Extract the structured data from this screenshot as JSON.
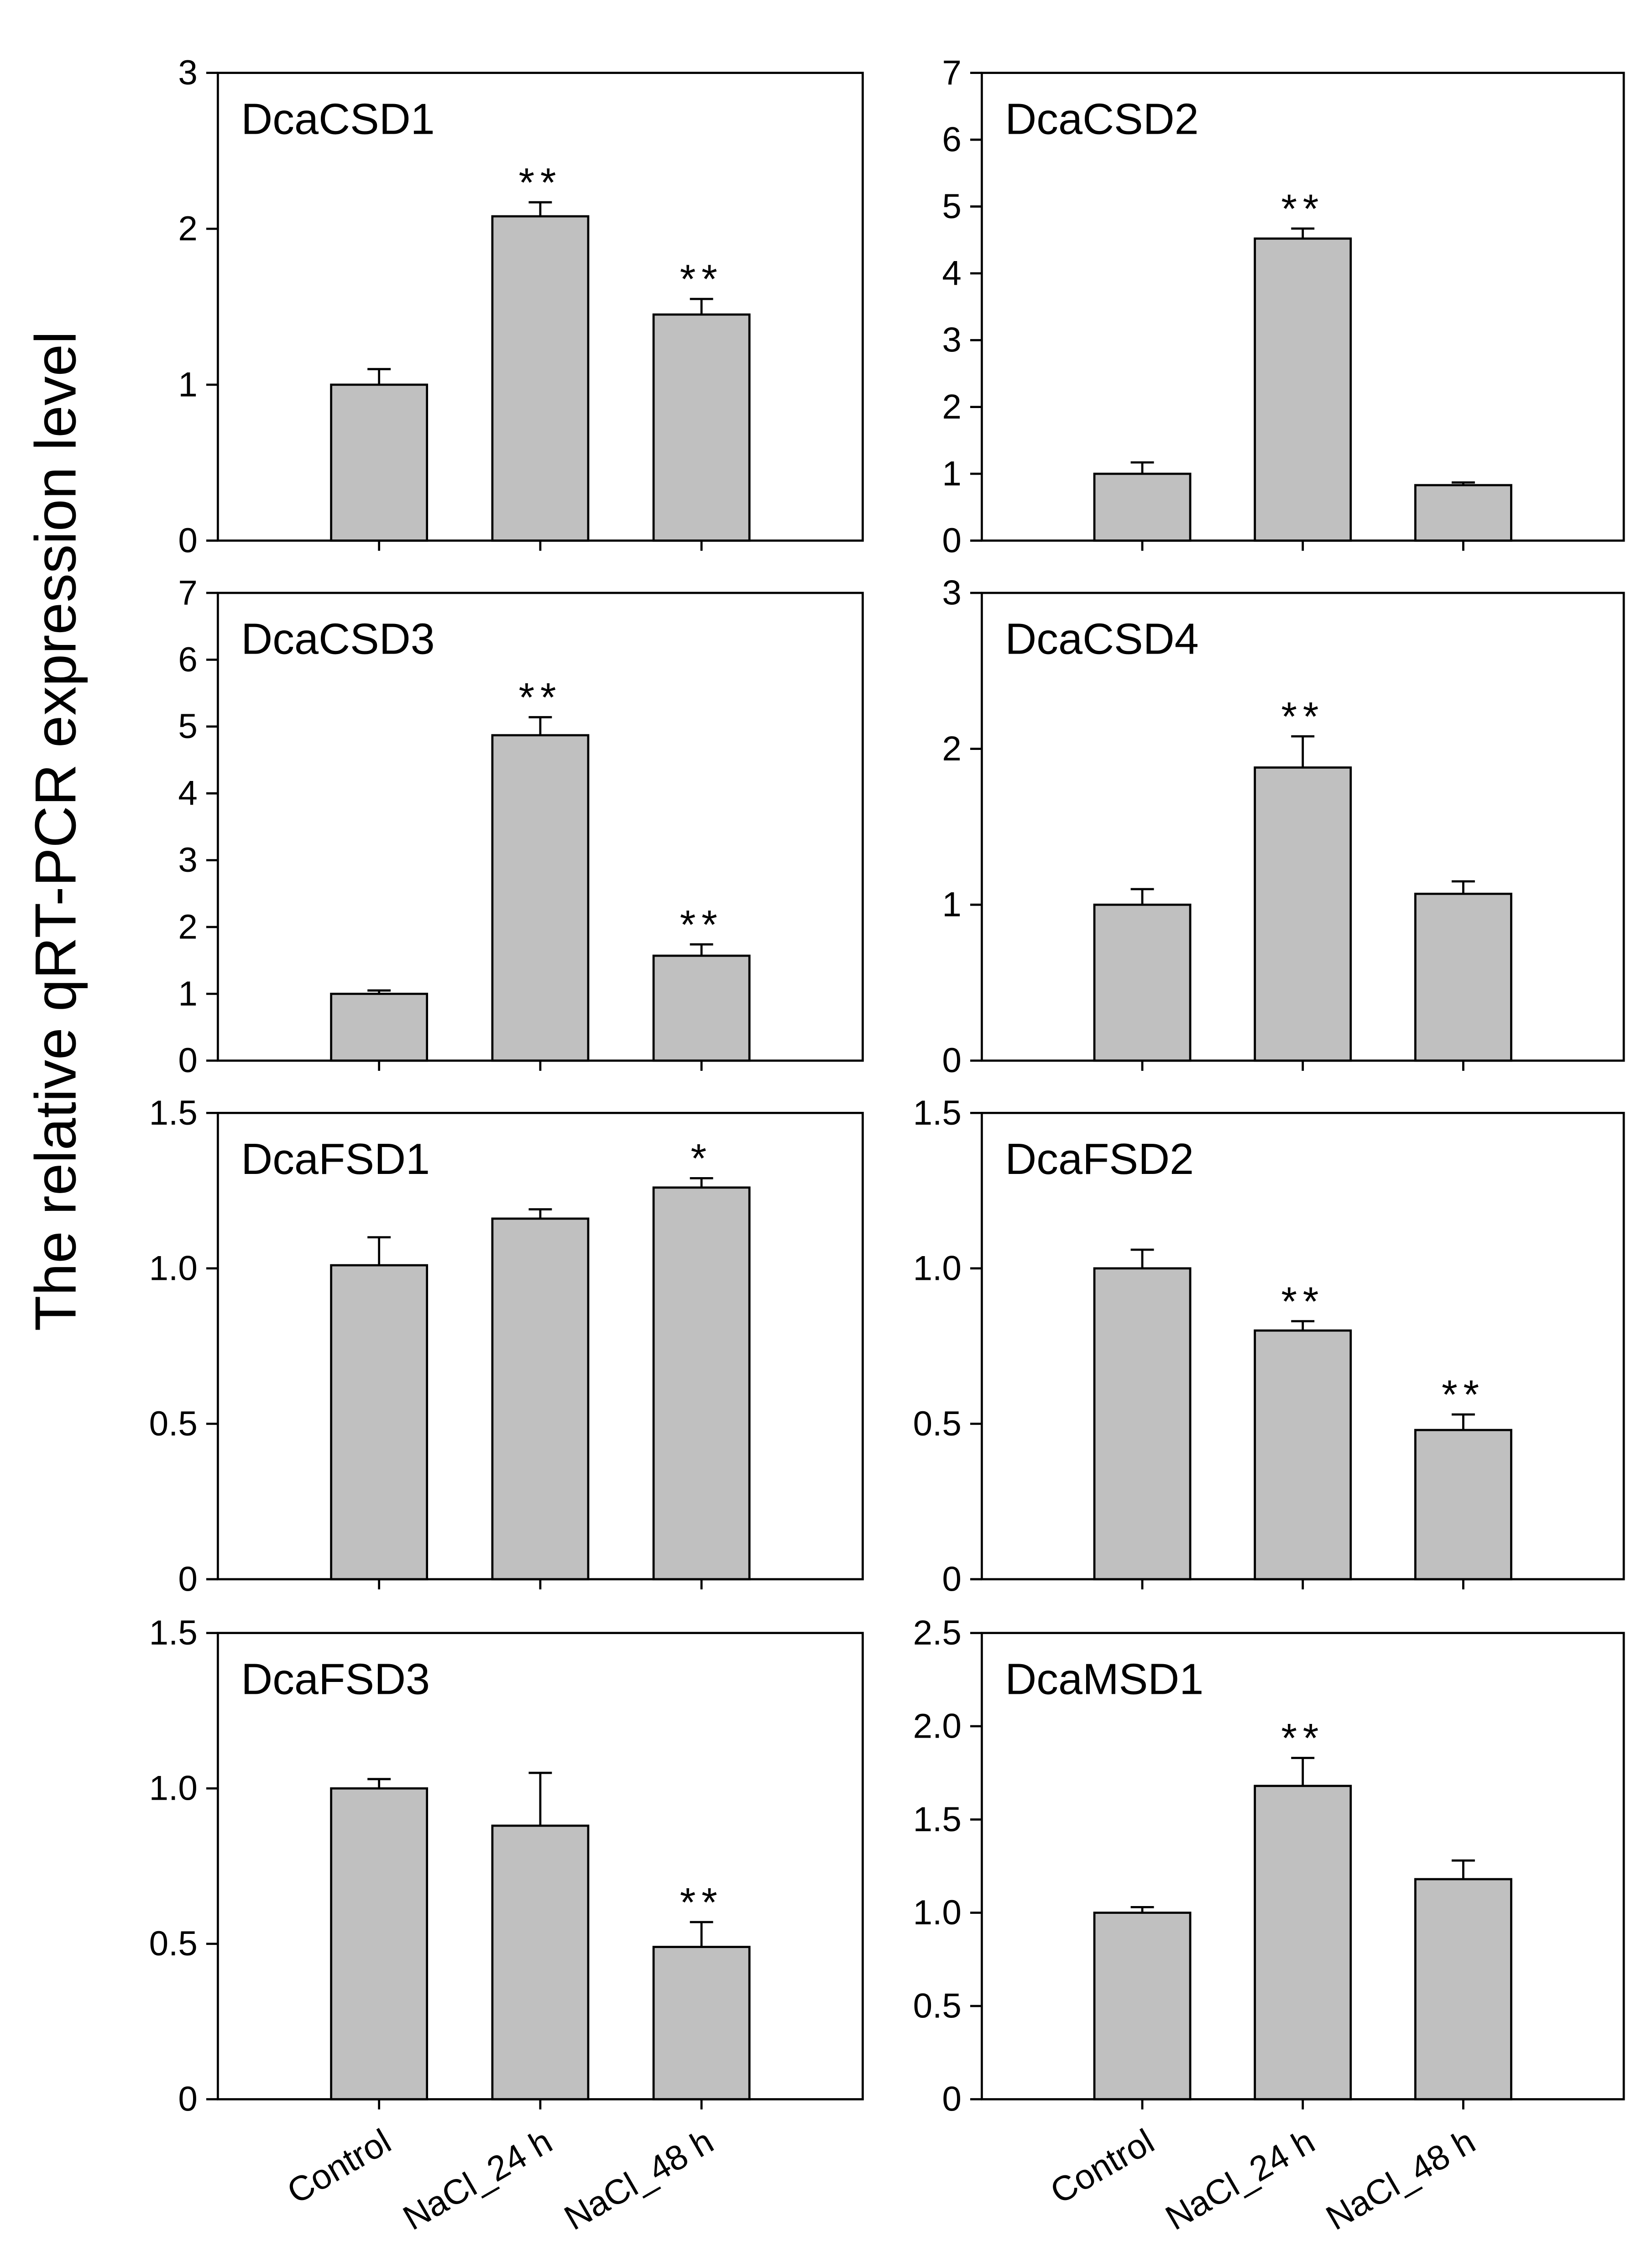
{
  "ylabel": "The relative qRT-PCR expression level",
  "chart_data": [
    {
      "type": "bar",
      "title": "DcaCSD1",
      "color": "#c0c0c0",
      "values": [
        1.0,
        2.08,
        1.45
      ],
      "errors": [
        0.1,
        0.09,
        0.1
      ],
      "annotations": [
        null,
        "**",
        "**"
      ],
      "ylim": [
        0,
        3
      ],
      "yticks": [
        0,
        1,
        2,
        3
      ]
    },
    {
      "type": "bar",
      "title": "DcaCSD2",
      "color": "#c0c0c0",
      "values": [
        1.0,
        4.52,
        0.83
      ],
      "errors": [
        0.17,
        0.15,
        0.04
      ],
      "annotations": [
        null,
        "**",
        null
      ],
      "ylim": [
        0,
        7
      ],
      "yticks": [
        0,
        1,
        2,
        3,
        4,
        5,
        6,
        7
      ]
    },
    {
      "type": "bar",
      "title": "DcaCSD3",
      "color": "#c0c0c0",
      "values": [
        1.0,
        4.87,
        1.57
      ],
      "errors": [
        0.05,
        0.27,
        0.17
      ],
      "annotations": [
        null,
        "**",
        "**"
      ],
      "ylim": [
        0,
        7
      ],
      "yticks": [
        0,
        1,
        2,
        3,
        4,
        5,
        6,
        7
      ]
    },
    {
      "type": "bar",
      "title": "DcaCSD4",
      "color": "#c0c0c0",
      "values": [
        1.0,
        1.88,
        1.07
      ],
      "errors": [
        0.1,
        0.2,
        0.08
      ],
      "annotations": [
        null,
        "**",
        null
      ],
      "ylim": [
        0,
        3
      ],
      "yticks": [
        0,
        1,
        2,
        3
      ]
    },
    {
      "type": "bar",
      "title": "DcaFSD1",
      "color": "#c0c0c0",
      "values": [
        1.01,
        1.16,
        1.26
      ],
      "errors": [
        0.09,
        0.03,
        0.03
      ],
      "annotations": [
        null,
        null,
        "*"
      ],
      "ylim": [
        0,
        1.5
      ],
      "yticks": [
        0,
        0.5,
        {
          "value": 1,
          "label": "1.0"
        },
        1.5
      ]
    },
    {
      "type": "bar",
      "title": "DcaFSD2",
      "color": "#c0c0c0",
      "values": [
        1.0,
        0.8,
        0.48
      ],
      "errors": [
        0.06,
        0.03,
        0.05
      ],
      "annotations": [
        null,
        "**",
        "**"
      ],
      "ylim": [
        0,
        1.5
      ],
      "yticks": [
        0,
        0.5,
        {
          "value": 1,
          "label": "1.0"
        },
        1.5
      ]
    },
    {
      "type": "bar",
      "title": "DcaFSD3",
      "color": "#c0c0c0",
      "categories": [
        "Control",
        "NaCl_24 h",
        "NaCl_48 h"
      ],
      "values": [
        1.0,
        0.88,
        0.49
      ],
      "errors": [
        0.03,
        0.17,
        0.08
      ],
      "annotations": [
        null,
        null,
        "**"
      ],
      "ylim": [
        0,
        1.5
      ],
      "yticks": [
        0,
        0.5,
        {
          "value": 1,
          "label": "1.0"
        },
        1.5
      ]
    },
    {
      "type": "bar",
      "title": "DcaMSD1",
      "color": "#c0c0c0",
      "categories": [
        "Control",
        "NaCl_24 h",
        "NaCl_48 h"
      ],
      "values": [
        1.0,
        1.68,
        1.18
      ],
      "errors": [
        0.03,
        0.15,
        0.1
      ],
      "annotations": [
        null,
        "**",
        null
      ],
      "ylim": [
        0,
        2.5
      ],
      "yticks": [
        0,
        0.5,
        {
          "value": 1,
          "label": "1.0"
        },
        1.5,
        {
          "value": 2,
          "label": "2.0"
        },
        2.5
      ]
    }
  ]
}
